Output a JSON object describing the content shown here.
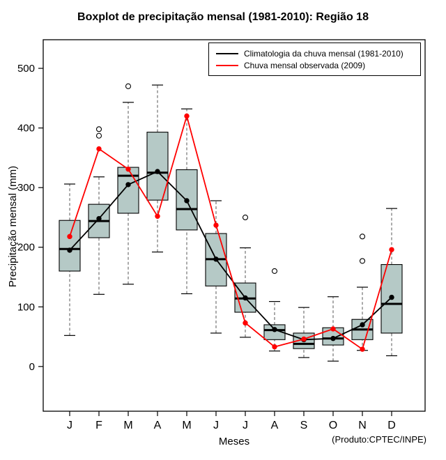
{
  "credit": "(Produto:CPTEC/INPE)",
  "chart_data": {
    "type": "boxplot",
    "title": "Boxplot de precipitação mensal (1981-2010): Região 18",
    "xlabel": "Meses",
    "ylabel": "Precipitação mensal (mm)",
    "categories": [
      "J",
      "F",
      "M",
      "A",
      "M",
      "J",
      "J",
      "A",
      "S",
      "O",
      "N",
      "D"
    ],
    "yticks": [
      0,
      100,
      200,
      300,
      400,
      500
    ],
    "ylim": [
      -75,
      548
    ],
    "grid": false,
    "legend_position": "top-right-inside",
    "box_fill": "#b5c9c6",
    "boxes": [
      {
        "low": 52,
        "q1": 160,
        "median": 197,
        "q3": 245,
        "high": 306,
        "outliers": []
      },
      {
        "low": 121,
        "q1": 216,
        "median": 244,
        "q3": 272,
        "high": 318,
        "outliers": [
          387,
          398
        ]
      },
      {
        "low": 138,
        "q1": 257,
        "median": 320,
        "q3": 334,
        "high": 443,
        "outliers": [
          470
        ]
      },
      {
        "low": 192,
        "q1": 279,
        "median": 325,
        "q3": 393,
        "high": 472,
        "outliers": []
      },
      {
        "low": 122,
        "q1": 229,
        "median": 264,
        "q3": 330,
        "high": 432,
        "outliers": []
      },
      {
        "low": 56,
        "q1": 135,
        "median": 180,
        "q3": 223,
        "high": 278,
        "outliers": []
      },
      {
        "low": 49,
        "q1": 91,
        "median": 114,
        "q3": 140,
        "high": 199,
        "outliers": [
          250
        ]
      },
      {
        "low": 26,
        "q1": 45,
        "median": 61,
        "q3": 70,
        "high": 109,
        "outliers": [
          160
        ]
      },
      {
        "low": 15,
        "q1": 30,
        "median": 38,
        "q3": 56,
        "high": 99,
        "outliers": []
      },
      {
        "low": 9,
        "q1": 36,
        "median": 47,
        "q3": 65,
        "high": 117,
        "outliers": []
      },
      {
        "low": 27,
        "q1": 45,
        "median": 62,
        "q3": 79,
        "high": 133,
        "outliers": [
          177,
          218
        ]
      },
      {
        "low": 18,
        "q1": 56,
        "median": 105,
        "q3": 171,
        "high": 265,
        "outliers": []
      }
    ],
    "series": [
      {
        "name": "Climatologia da chuva mensal (1981-2010)",
        "color": "#000000",
        "values": [
          195,
          248,
          305,
          327,
          278,
          180,
          115,
          62,
          45,
          47,
          70,
          116
        ]
      },
      {
        "name": "Chuva mensal observada (2009)",
        "color": "#ff0000",
        "values": [
          218,
          365,
          331,
          252,
          420,
          237,
          73,
          33,
          46,
          63,
          29,
          196
        ]
      }
    ]
  }
}
